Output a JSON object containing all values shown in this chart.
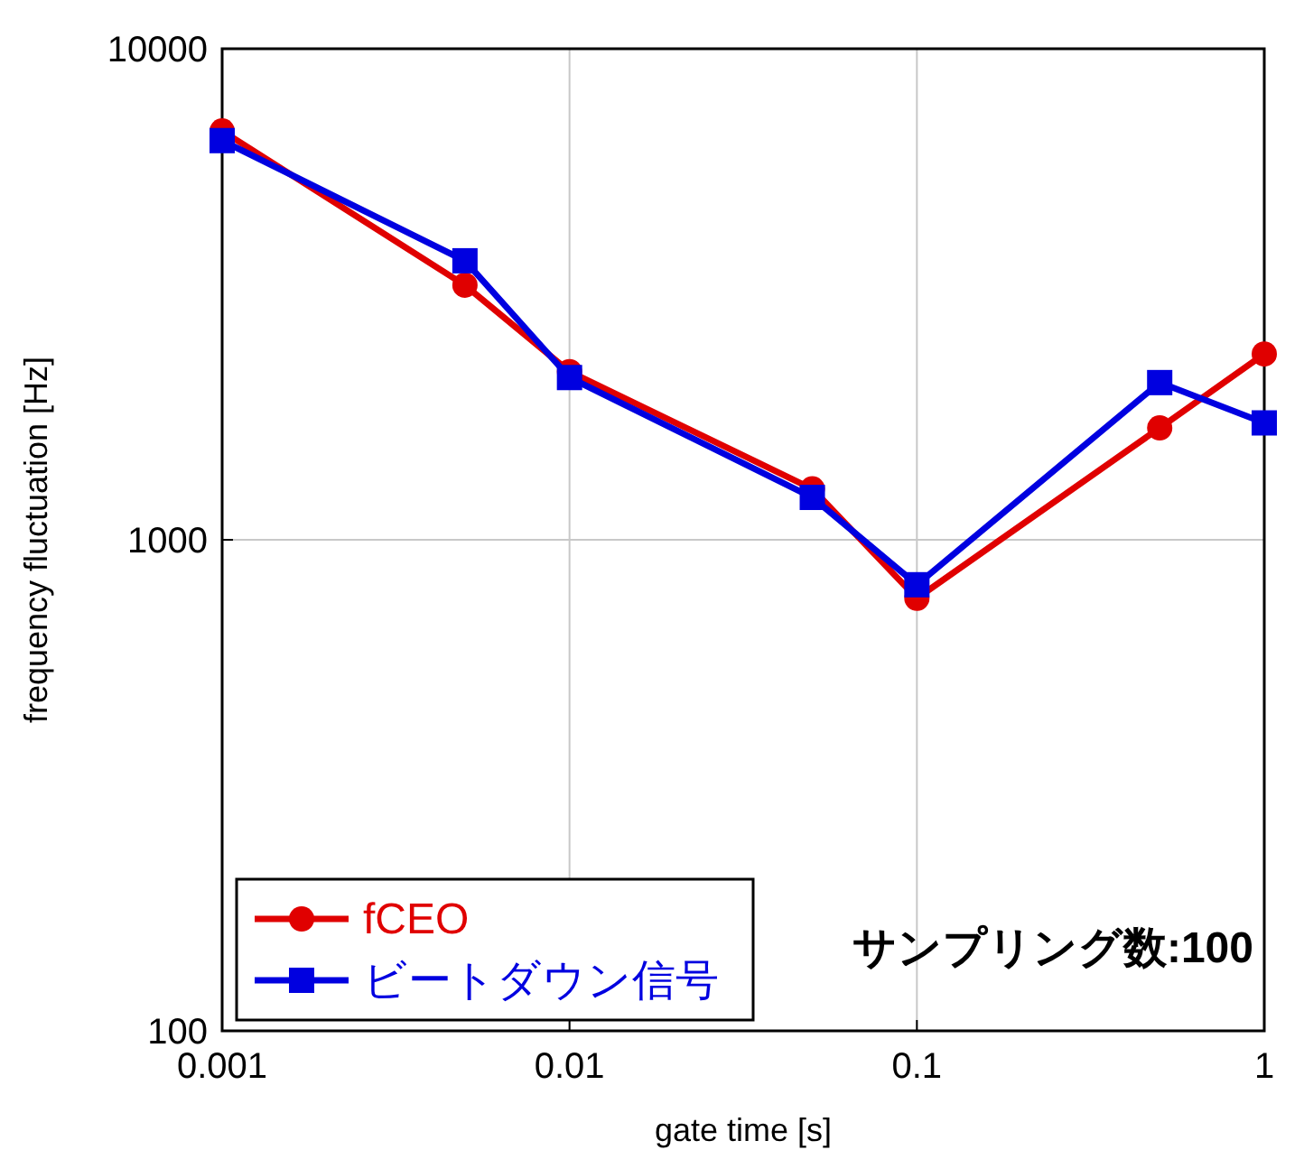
{
  "chart_data": {
    "type": "line",
    "xlabel": "gate time [s]",
    "ylabel": "frequency fluctuation [Hz]",
    "x": [
      0.001,
      0.005,
      0.01,
      0.05,
      0.1,
      0.5,
      1
    ],
    "series": [
      {
        "name": "fCEO",
        "color": "#e00000",
        "marker": "circle",
        "values": [
          6800,
          3300,
          2200,
          1270,
          760,
          1690,
          2390
        ]
      },
      {
        "name": "ビートダウン信号",
        "color": "#0000e0",
        "marker": "square",
        "values": [
          6500,
          3700,
          2140,
          1220,
          810,
          2090,
          1730
        ]
      }
    ],
    "log": "xy",
    "xlim": [
      0.001,
      1
    ],
    "ylim": [
      100,
      10000
    ],
    "xticks": [
      0.001,
      0.01,
      0.1,
      1
    ],
    "yticks": [
      100,
      1000,
      10000
    ],
    "grid": true,
    "legend": "bottom left",
    "line_style": "solid",
    "annotations": [
      "サンプリング数:100"
    ]
  }
}
